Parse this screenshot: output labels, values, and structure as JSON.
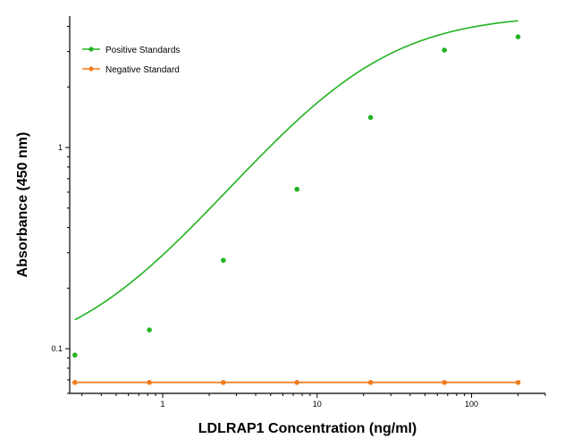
{
  "chart_data": {
    "type": "scatter",
    "xlabel": "LDLRAP1 Concentration (ng/ml)",
    "ylabel": "Absorbance (450 nm)",
    "xscale": "log",
    "yscale": "log",
    "xlim": [
      0.25,
      300
    ],
    "ylim": [
      0.06,
      4.5
    ],
    "x_tick_labels": [
      {
        "value": 1,
        "label": "1"
      },
      {
        "value": 10,
        "label": "10"
      },
      {
        "value": 100,
        "label": "100"
      }
    ],
    "y_tick_labels": [
      {
        "value": 0.1,
        "label": "0.1"
      },
      {
        "value": 1,
        "label": "1"
      }
    ],
    "legend_position": "top-left",
    "grid": false,
    "series": [
      {
        "name": "Positive Standards",
        "color": "#22b322",
        "fit": "sigmoid curve",
        "x": [
          0.27,
          0.82,
          2.47,
          7.4,
          22.2,
          66.7,
          200
        ],
        "y": [
          0.093,
          0.124,
          0.275,
          0.62,
          1.41,
          3.05,
          3.55
        ]
      },
      {
        "name": "Negative Standard",
        "color": "#f07c1c",
        "fit": "line",
        "x": [
          0.27,
          0.82,
          2.47,
          7.4,
          22.2,
          66.7,
          200
        ],
        "y": [
          0.068,
          0.068,
          0.068,
          0.068,
          0.068,
          0.068,
          0.068
        ]
      }
    ]
  }
}
